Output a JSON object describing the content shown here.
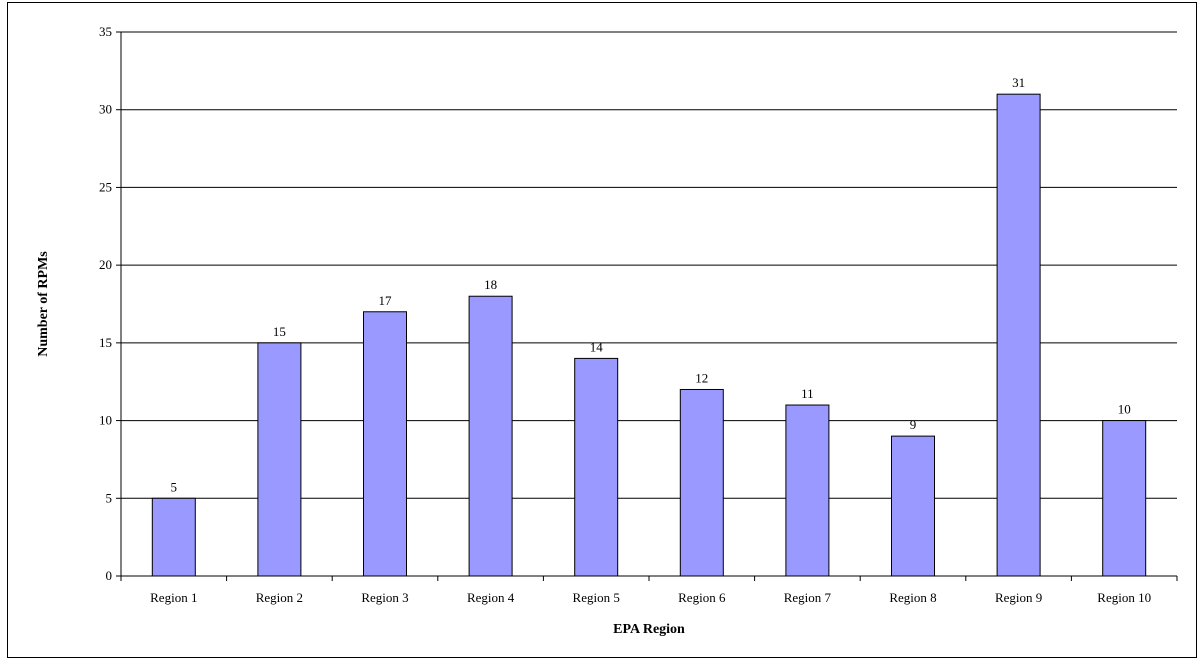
{
  "chart_data": {
    "type": "bar",
    "title": "",
    "xlabel": "EPA Region",
    "ylabel": "Number of RPMs",
    "categories": [
      "Region 1",
      "Region 2",
      "Region 3",
      "Region 4",
      "Region 5",
      "Region 6",
      "Region 7",
      "Region 8",
      "Region 9",
      "Region 10"
    ],
    "values": [
      5,
      15,
      17,
      18,
      14,
      12,
      11,
      9,
      31,
      10
    ],
    "data_labels": [
      "5",
      "15",
      "17",
      "18",
      "14",
      "12",
      "11",
      "9",
      "31",
      "10"
    ],
    "y_ticks": [
      "0",
      "5",
      "10",
      "15",
      "20",
      "25",
      "30",
      "35"
    ],
    "ylim": [
      0,
      35
    ],
    "grid": true,
    "legend": "none",
    "bar_color": "#9999ff",
    "bar_edge_color": "#000000"
  }
}
